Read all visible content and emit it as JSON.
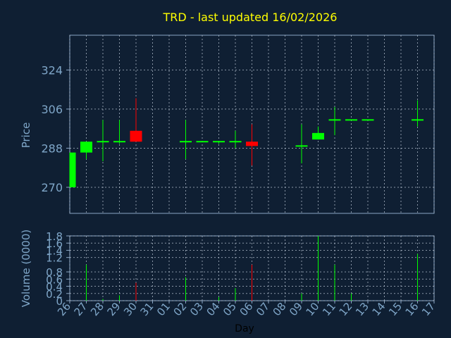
{
  "title": "TRD - last updated 16/02/2026",
  "colors": {
    "background": "#0f1f33",
    "title": "#ffff00",
    "axis_text": "#7fa6c8",
    "frame": "#8aa6c4",
    "grid": "#bcc8d6",
    "up": "#00ff00",
    "down": "#ff0000"
  },
  "chart_data": [
    {
      "type": "candlestick",
      "ylabel": "Price",
      "ylim": [
        258,
        340
      ],
      "yticks": [
        270,
        288,
        306,
        324
      ],
      "grid": true,
      "candles": [
        {
          "day": "26",
          "open": 270,
          "high": 286,
          "low": 270,
          "close": 286
        },
        {
          "day": "27",
          "open": 286,
          "high": 291,
          "low": 283,
          "close": 291
        },
        {
          "day": "28",
          "open": 291,
          "high": 301,
          "low": 282,
          "close": 291
        },
        {
          "day": "29",
          "open": 291,
          "high": 301,
          "low": 290,
          "close": 291
        },
        {
          "day": "30",
          "open": 296,
          "high": 311,
          "low": 291,
          "close": 291
        },
        {
          "day": "02",
          "open": 291,
          "high": 301,
          "low": 283,
          "close": 291
        },
        {
          "day": "03",
          "open": 291,
          "high": 291,
          "low": 291,
          "close": 291
        },
        {
          "day": "04",
          "open": 291,
          "high": 291,
          "low": 290,
          "close": 291
        },
        {
          "day": "05",
          "open": 291,
          "high": 296,
          "low": 288,
          "close": 291
        },
        {
          "day": "06",
          "open": 291,
          "high": 299,
          "low": 280,
          "close": 289
        },
        {
          "day": "09",
          "open": 289,
          "high": 299,
          "low": 281,
          "close": 289
        },
        {
          "day": "10",
          "open": 292,
          "high": 298,
          "low": 292,
          "close": 295
        },
        {
          "day": "11",
          "open": 301,
          "high": 307,
          "low": 294,
          "close": 301
        },
        {
          "day": "12",
          "open": 301,
          "high": 301,
          "low": 301,
          "close": 301
        },
        {
          "day": "13",
          "open": 301,
          "high": 301,
          "low": 301,
          "close": 301
        },
        {
          "day": "16",
          "open": 301,
          "high": 310,
          "low": 298,
          "close": 301
        }
      ]
    },
    {
      "type": "bar",
      "ylabel": "Volume (0000)",
      "xlabel": "Day",
      "ylim": [
        0,
        1.8
      ],
      "yticks": [
        "0",
        "0.2",
        "0.4",
        "0.6",
        "0.8",
        "1.2",
        "1.4",
        "1.6",
        "1.8"
      ],
      "ytick_values": [
        0,
        0.2,
        0.4,
        0.6,
        0.8,
        1.2,
        1.4,
        1.6,
        1.8
      ],
      "xticks": [
        "26",
        "27",
        "28",
        "29",
        "30",
        "31",
        "01",
        "02",
        "03",
        "04",
        "05",
        "06",
        "07",
        "08",
        "09",
        "10",
        "11",
        "12",
        "13",
        "14",
        "15",
        "16",
        "17"
      ],
      "bars": [
        {
          "day": "26",
          "value": 0.0,
          "direction": "up"
        },
        {
          "day": "27",
          "value": 1.0,
          "direction": "up"
        },
        {
          "day": "28",
          "value": 0.05,
          "direction": "up"
        },
        {
          "day": "29",
          "value": 0.15,
          "direction": "up"
        },
        {
          "day": "30",
          "value": 0.5,
          "direction": "down"
        },
        {
          "day": "02",
          "value": 0.65,
          "direction": "up"
        },
        {
          "day": "04",
          "value": 0.1,
          "direction": "up"
        },
        {
          "day": "05",
          "value": 0.35,
          "direction": "up"
        },
        {
          "day": "06",
          "value": 1.0,
          "direction": "down"
        },
        {
          "day": "09",
          "value": 0.2,
          "direction": "up"
        },
        {
          "day": "10",
          "value": 1.8,
          "direction": "up"
        },
        {
          "day": "11",
          "value": 1.0,
          "direction": "up"
        },
        {
          "day": "12",
          "value": 0.2,
          "direction": "up"
        },
        {
          "day": "16",
          "value": 1.3,
          "direction": "up"
        }
      ]
    }
  ]
}
